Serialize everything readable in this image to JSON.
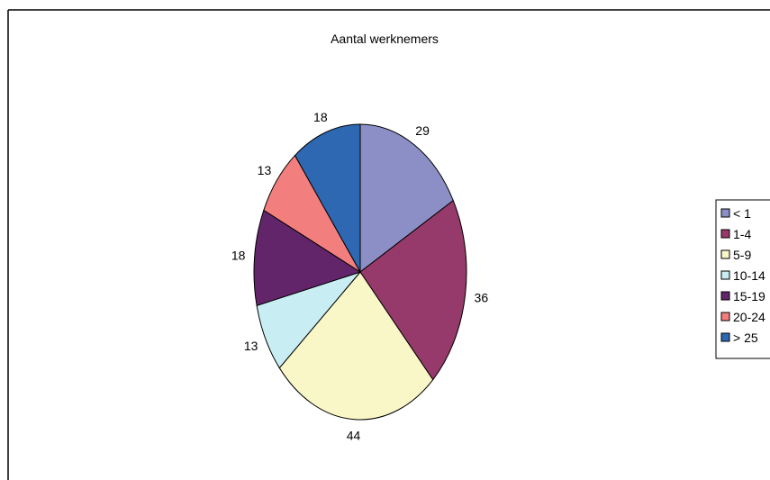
{
  "chart_data": {
    "type": "pie",
    "title": "Aantal werknemers",
    "categories": [
      "< 1",
      "1-4",
      "5-9",
      "10-14",
      "15-19",
      "20-24",
      "> 25"
    ],
    "values": [
      29,
      36,
      44,
      13,
      18,
      13,
      18
    ],
    "colors": [
      "#8b8fc6",
      "#953a6a",
      "#f9f6c7",
      "#c8eef3",
      "#63256a",
      "#f27f7d",
      "#2f68b2"
    ],
    "legend": "right",
    "start_angle": "12 o'clock",
    "direction": "clockwise"
  }
}
